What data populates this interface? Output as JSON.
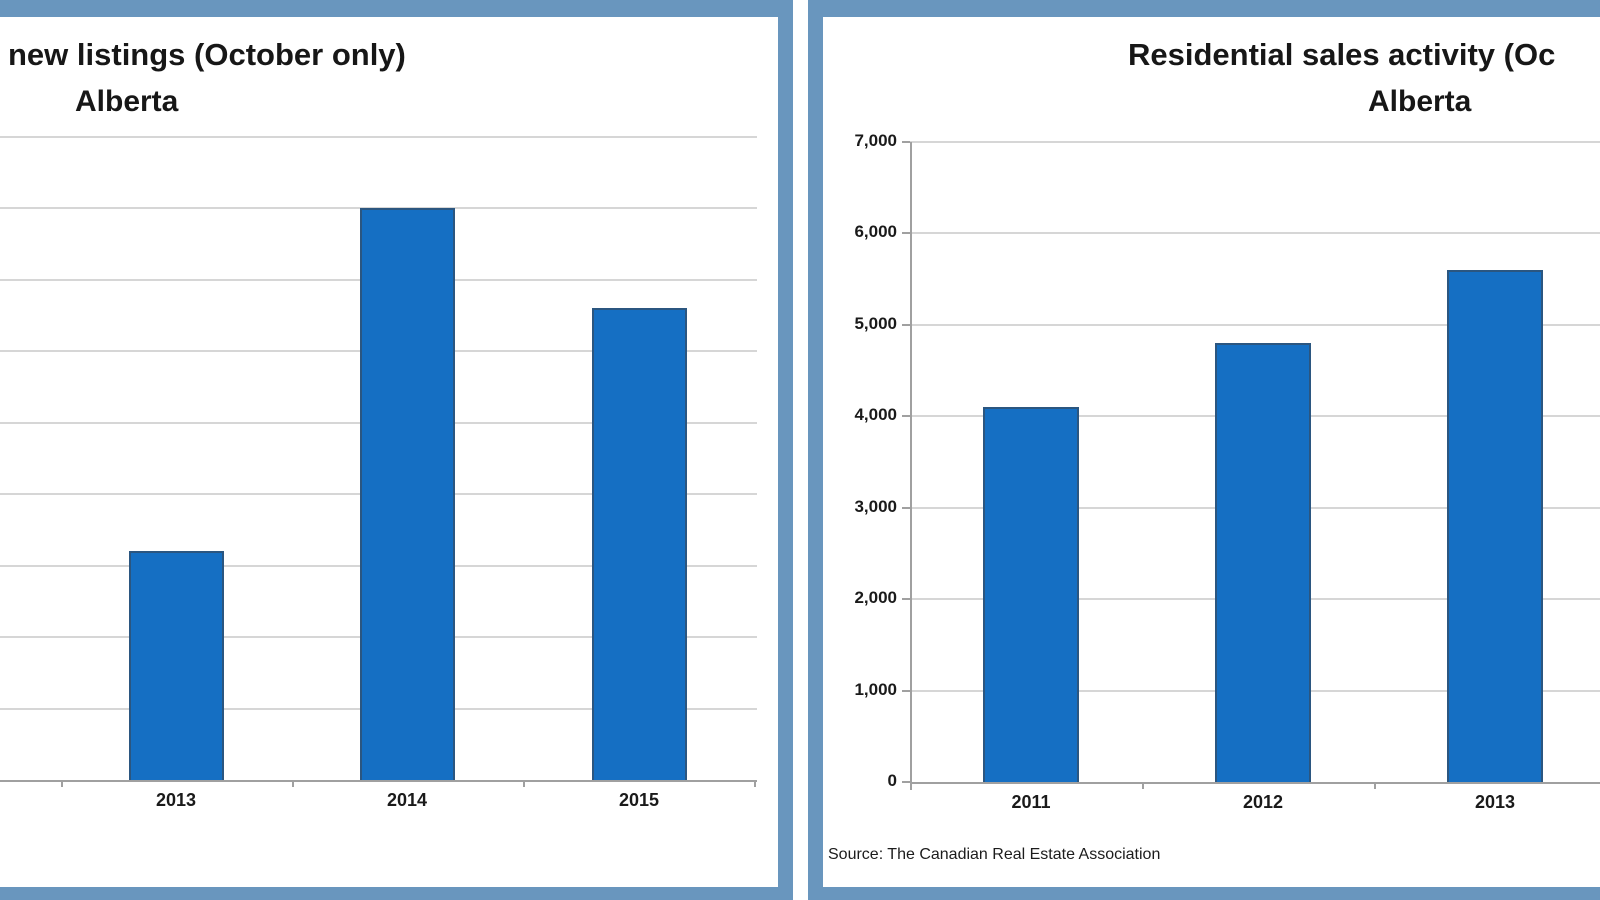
{
  "frame": {
    "color": "#6996BE"
  },
  "palette": {
    "bar_fill": "#156FC3",
    "bar_border": "#2B5680",
    "gridline": "#D6D6D6",
    "axis": "#A0A0A0",
    "text": "#171717"
  },
  "chart_data": [
    {
      "type": "bar",
      "title": "new listings (October only)",
      "subtitle": "Alberta",
      "title_crop_note": "title cut off at left edge of screenshot",
      "categories": [
        "2013",
        "2014",
        "2015"
      ],
      "values_gridline_units": [
        3.2,
        8.0,
        6.6
      ],
      "y_axis_note": "y-axis labels cropped out of view; 9 unlabeled gridlines above baseline",
      "ylim_units": [
        0,
        9
      ],
      "grid": true,
      "legend": false
    },
    {
      "type": "bar",
      "title": "Residential sales activity (Oc",
      "subtitle": "Alberta",
      "title_crop_note": "title cut off at right edge of screenshot",
      "categories": [
        "2011",
        "2012",
        "2013"
      ],
      "values": [
        4100,
        4800,
        5600
      ],
      "ylim": [
        0,
        7000
      ],
      "ytick_step": 1000,
      "ytick_labels": [
        "0",
        "1,000",
        "2,000",
        "3,000",
        "4,000",
        "5,000",
        "6,000",
        "7,000"
      ],
      "grid": true,
      "legend": false,
      "source": "Source: The Canadian Real Estate Association"
    }
  ]
}
